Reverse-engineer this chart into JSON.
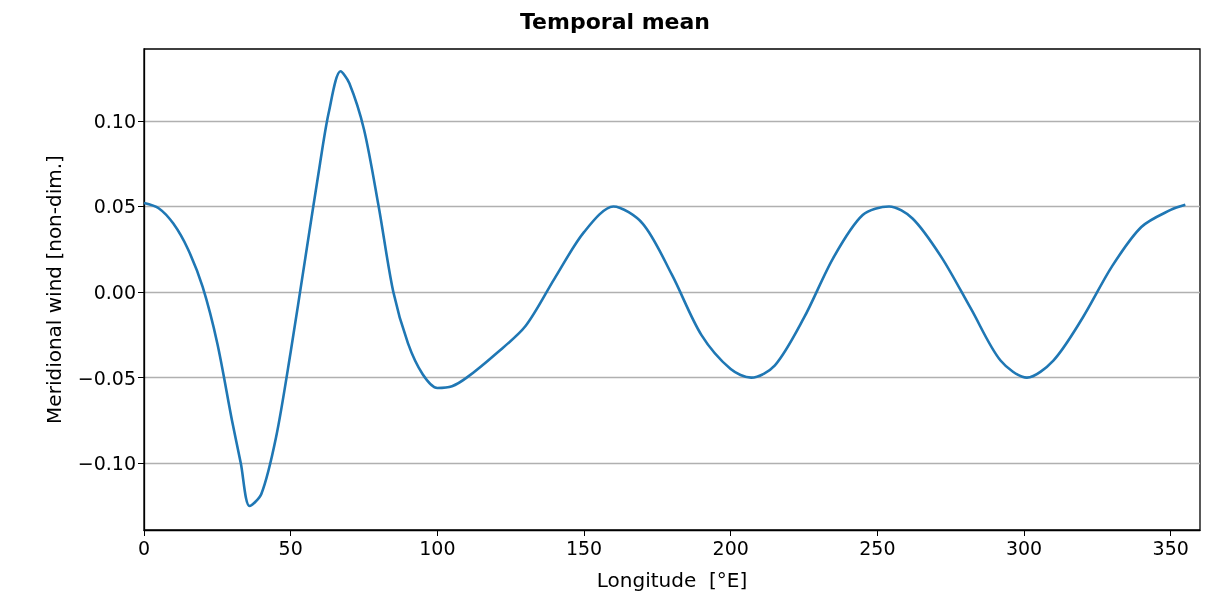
{
  "chart_data": {
    "type": "line",
    "title": "Temporal mean",
    "xlabel": "Longitude  [°E]",
    "ylabel": "Meridional wind [non-dim.]",
    "x": [
      0,
      5,
      10,
      15,
      20,
      25,
      30,
      33,
      36,
      40,
      45,
      50,
      55,
      60,
      63,
      67,
      70,
      75,
      80,
      85,
      90,
      95,
      100,
      105,
      110,
      120,
      130,
      140,
      150,
      160,
      170,
      180,
      190,
      200,
      207,
      215,
      225,
      235,
      245,
      254,
      262,
      272,
      282,
      292,
      301,
      310,
      320,
      330,
      340,
      350,
      355
    ],
    "series": [
      {
        "color": "#1f77b4",
        "values": [
          0.052,
          0.049,
          0.04,
          0.025,
          0.003,
          -0.03,
          -0.075,
          -0.1,
          -0.125,
          -0.118,
          -0.085,
          -0.035,
          0.02,
          0.075,
          0.105,
          0.129,
          0.122,
          0.095,
          0.05,
          0.0,
          -0.03,
          -0.048,
          -0.056,
          -0.055,
          -0.05,
          -0.036,
          -0.02,
          0.008,
          0.035,
          0.05,
          0.04,
          0.01,
          -0.025,
          -0.045,
          -0.05,
          -0.043,
          -0.015,
          0.02,
          0.045,
          0.05,
          0.043,
          0.02,
          -0.01,
          -0.04,
          -0.05,
          -0.04,
          -0.015,
          0.015,
          0.038,
          0.048,
          0.051
        ]
      }
    ],
    "xlim": [
      0,
      360
    ],
    "xticks": [
      0,
      50,
      100,
      150,
      200,
      250,
      300,
      350
    ],
    "ylim": [
      -0.139,
      0.142
    ],
    "yticks": [
      {
        "value": -0.1,
        "label": "−0.10"
      },
      {
        "value": -0.05,
        "label": "−0.05"
      },
      {
        "value": 0,
        "label": "0.00"
      },
      {
        "value": 0.05,
        "label": "0.05"
      },
      {
        "value": 0.1,
        "label": "0.10"
      }
    ],
    "grid": "y",
    "marker": "none",
    "line_style": "solid"
  }
}
